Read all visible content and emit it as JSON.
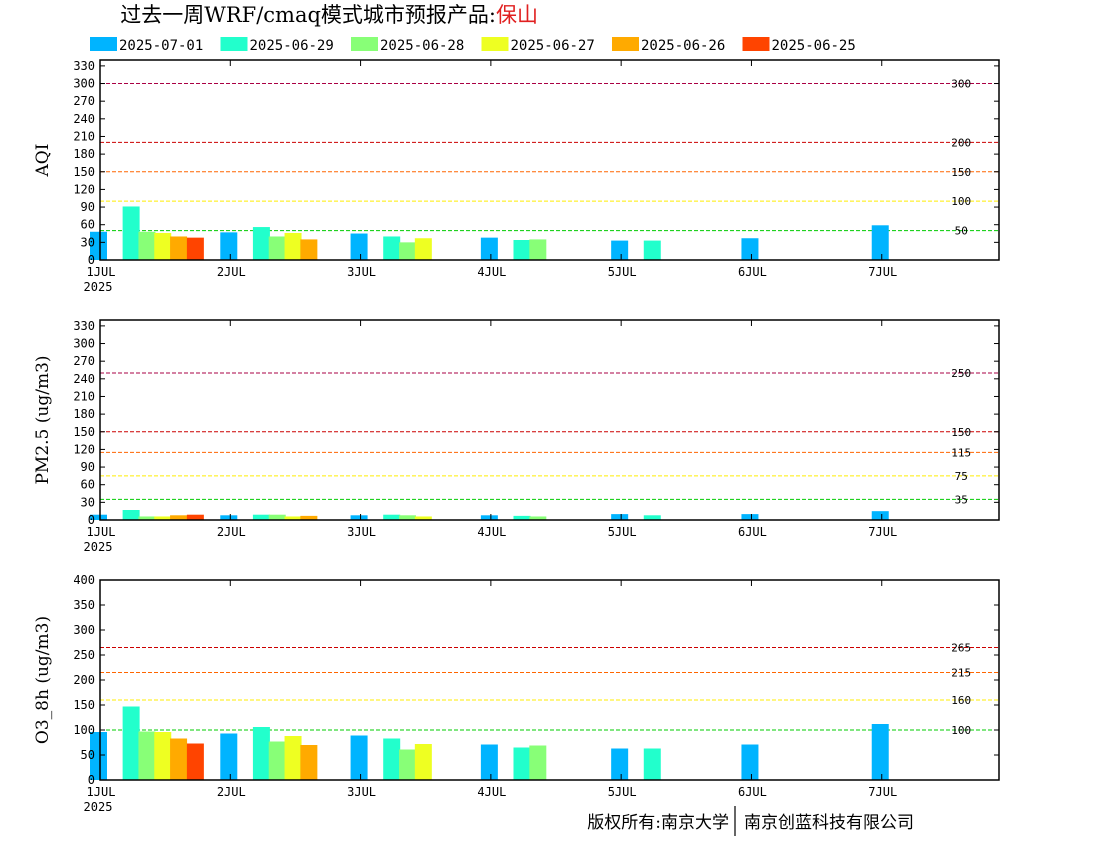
{
  "title": {
    "main": "过去一周WRF/cmaq模式城市预报产品:",
    "city": "保山",
    "city_color": "#e02020"
  },
  "legend": [
    {
      "name": "2025-07-01",
      "color": "#00b4ff"
    },
    {
      "name": "2025-06-29",
      "color": "#22ffcc"
    },
    {
      "name": "2025-06-28",
      "color": "#88ff77"
    },
    {
      "name": "2025-06-27",
      "color": "#eeff22"
    },
    {
      "name": "2025-06-26",
      "color": "#ffaa00"
    },
    {
      "name": "2025-06-25",
      "color": "#ff4400"
    }
  ],
  "footer": {
    "left": "版权所有:南京大学",
    "right": "南京创蓝科技有限公司"
  },
  "chart_data": [
    {
      "type": "bar",
      "ylabel": "AQI",
      "ylim": [
        0,
        340
      ],
      "yticks": [
        0,
        30,
        60,
        90,
        120,
        150,
        180,
        210,
        240,
        270,
        300,
        330
      ],
      "xlim": [
        0,
        6.9
      ],
      "xticks": [
        {
          "pos": 0,
          "label": "1JUL",
          "sublabel": "2025"
        },
        {
          "pos": 1,
          "label": "2JUL"
        },
        {
          "pos": 2,
          "label": "3JUL"
        },
        {
          "pos": 3,
          "label": "4JUL"
        },
        {
          "pos": 4,
          "label": "5JUL"
        },
        {
          "pos": 5,
          "label": "6JUL"
        },
        {
          "pos": 6,
          "label": "7JUL"
        }
      ],
      "thresholds": [
        {
          "value": 300,
          "label": "300",
          "color": "#aa0044"
        },
        {
          "value": 200,
          "label": "200",
          "color": "#cc0000"
        },
        {
          "value": 150,
          "label": "150",
          "color": "#ff6600"
        },
        {
          "value": 100,
          "label": "100",
          "color": "#ffee00"
        },
        {
          "value": 50,
          "label": "50",
          "color": "#00cc00"
        }
      ],
      "series": [
        {
          "name": "2025-07-01",
          "values": [
            48,
            47,
            45,
            38,
            33,
            37,
            59
          ]
        },
        {
          "name": "2025-06-29",
          "values": [
            91,
            56,
            40,
            34,
            33,
            null,
            null
          ]
        },
        {
          "name": "2025-06-28",
          "values": [
            48,
            40,
            30,
            35,
            null,
            null,
            null
          ]
        },
        {
          "name": "2025-06-27",
          "values": [
            46,
            46,
            37,
            null,
            null,
            null,
            null
          ]
        },
        {
          "name": "2025-06-26",
          "values": [
            40,
            35,
            null,
            null,
            null,
            null,
            null
          ]
        },
        {
          "name": "2025-06-25",
          "values": [
            38,
            null,
            null,
            null,
            null,
            null,
            null
          ]
        }
      ]
    },
    {
      "type": "bar",
      "ylabel": "PM2.5 (ug/m3)",
      "ylim": [
        0,
        340
      ],
      "yticks": [
        0,
        30,
        60,
        90,
        120,
        150,
        180,
        210,
        240,
        270,
        300,
        330
      ],
      "xlim": [
        0,
        6.9
      ],
      "xticks": [
        {
          "pos": 0,
          "label": "1JUL",
          "sublabel": "2025"
        },
        {
          "pos": 1,
          "label": "2JUL"
        },
        {
          "pos": 2,
          "label": "3JUL"
        },
        {
          "pos": 3,
          "label": "4JUL"
        },
        {
          "pos": 4,
          "label": "5JUL"
        },
        {
          "pos": 5,
          "label": "6JUL"
        },
        {
          "pos": 6,
          "label": "7JUL"
        }
      ],
      "thresholds": [
        {
          "value": 250,
          "label": "250",
          "color": "#aa0044"
        },
        {
          "value": 150,
          "label": "150",
          "color": "#cc0000"
        },
        {
          "value": 115,
          "label": "115",
          "color": "#ff6600"
        },
        {
          "value": 75,
          "label": "75",
          "color": "#ffee00"
        },
        {
          "value": 35,
          "label": "35",
          "color": "#00cc00"
        }
      ],
      "series": [
        {
          "name": "2025-07-01",
          "values": [
            9,
            8,
            8,
            8,
            10,
            10,
            15
          ]
        },
        {
          "name": "2025-06-29",
          "values": [
            17,
            9,
            9,
            7,
            8,
            null,
            null
          ]
        },
        {
          "name": "2025-06-28",
          "values": [
            6,
            9,
            8,
            6,
            null,
            null,
            null
          ]
        },
        {
          "name": "2025-06-27",
          "values": [
            6,
            6,
            6,
            null,
            null,
            null,
            null
          ]
        },
        {
          "name": "2025-06-26",
          "values": [
            8,
            7,
            null,
            null,
            null,
            null,
            null
          ]
        },
        {
          "name": "2025-06-25",
          "values": [
            9,
            null,
            null,
            null,
            null,
            null,
            null
          ]
        }
      ]
    },
    {
      "type": "bar",
      "ylabel": "O3_8h (ug/m3)",
      "ylim": [
        0,
        400
      ],
      "yticks": [
        0,
        50,
        100,
        150,
        200,
        250,
        300,
        350,
        400
      ],
      "xlim": [
        0,
        6.9
      ],
      "xticks": [
        {
          "pos": 0,
          "label": "1JUL",
          "sublabel": "2025"
        },
        {
          "pos": 1,
          "label": "2JUL"
        },
        {
          "pos": 2,
          "label": "3JUL"
        },
        {
          "pos": 3,
          "label": "4JUL"
        },
        {
          "pos": 4,
          "label": "5JUL"
        },
        {
          "pos": 5,
          "label": "6JUL"
        },
        {
          "pos": 6,
          "label": "7JUL"
        }
      ],
      "thresholds": [
        {
          "value": 265,
          "label": "265",
          "color": "#cc0000"
        },
        {
          "value": 215,
          "label": "215",
          "color": "#ff6600"
        },
        {
          "value": 160,
          "label": "160",
          "color": "#ffee00"
        },
        {
          "value": 100,
          "label": "100",
          "color": "#00cc00"
        }
      ],
      "series": [
        {
          "name": "2025-07-01",
          "values": [
            96,
            93,
            89,
            71,
            63,
            71,
            112
          ]
        },
        {
          "name": "2025-06-29",
          "values": [
            147,
            106,
            83,
            65,
            63,
            null,
            null
          ]
        },
        {
          "name": "2025-06-28",
          "values": [
            97,
            77,
            61,
            69,
            null,
            null,
            null
          ]
        },
        {
          "name": "2025-06-27",
          "values": [
            96,
            88,
            72,
            null,
            null,
            null,
            null
          ]
        },
        {
          "name": "2025-06-26",
          "values": [
            83,
            70,
            null,
            null,
            null,
            null,
            null
          ]
        },
        {
          "name": "2025-06-25",
          "values": [
            73,
            null,
            null,
            null,
            null,
            null,
            null
          ]
        }
      ]
    }
  ]
}
